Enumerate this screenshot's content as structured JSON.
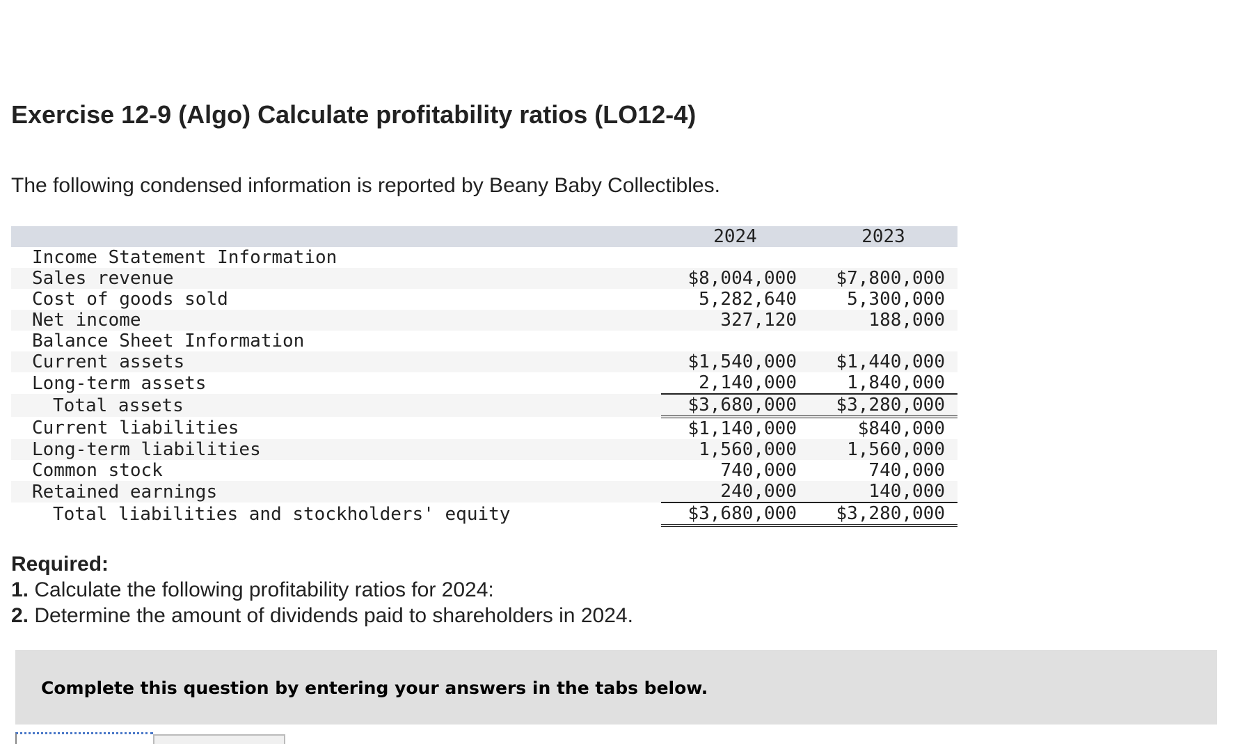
{
  "title": "Exercise 12-9 (Algo) Calculate profitability ratios (LO12-4)",
  "intro": "The following condensed information is reported by Beany Baby Collectibles.",
  "table": {
    "headers": [
      "2024",
      "2023"
    ],
    "rows": [
      {
        "label": "Income Statement Information",
        "v2024": "",
        "v2023": ""
      },
      {
        "label": "Sales revenue",
        "v2024": "$8,004,000",
        "v2023": "$7,800,000"
      },
      {
        "label": "Cost of goods sold",
        "v2024": "5,282,640",
        "v2023": "5,300,000"
      },
      {
        "label": "Net income",
        "v2024": "327,120",
        "v2023": "188,000"
      },
      {
        "label": "Balance Sheet Information",
        "v2024": "",
        "v2023": ""
      },
      {
        "label": "Current assets",
        "v2024": "$1,540,000",
        "v2023": "$1,440,000"
      },
      {
        "label": "Long-term assets",
        "v2024": "2,140,000",
        "v2023": "1,840,000"
      },
      {
        "label": "Total assets",
        "v2024": "$3,680,000",
        "v2023": "$3,280,000"
      },
      {
        "label": "Current liabilities",
        "v2024": "$1,140,000",
        "v2023": "$840,000"
      },
      {
        "label": "Long-term liabilities",
        "v2024": "1,560,000",
        "v2023": "1,560,000"
      },
      {
        "label": "Common stock",
        "v2024": "740,000",
        "v2023": "740,000"
      },
      {
        "label": "Retained earnings",
        "v2024": "240,000",
        "v2023": "140,000"
      },
      {
        "label": "Total liabilities and stockholders' equity",
        "v2024": "$3,680,000",
        "v2023": "$3,280,000"
      }
    ]
  },
  "required": {
    "heading": "Required:",
    "items": [
      {
        "num": "1.",
        "text": " Calculate the following profitability ratios for 2024:"
      },
      {
        "num": "2.",
        "text": " Determine the amount of dividends paid to shareholders in 2024."
      }
    ]
  },
  "instruction": "Complete this question by entering your answers in the tabs below."
}
